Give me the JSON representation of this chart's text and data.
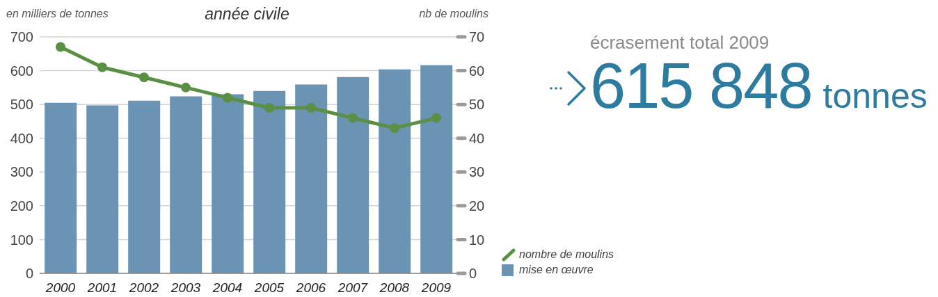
{
  "chart_data": [
    {
      "type": "bar",
      "title": "année civile",
      "ylabel": "en milliers de tonnes",
      "y2label": "nb de moulins",
      "categories": [
        "2000",
        "2001",
        "2002",
        "2003",
        "2004",
        "2005",
        "2006",
        "2007",
        "2008",
        "2009"
      ],
      "series": [
        {
          "name": "nombre de moulins",
          "type": "line",
          "axis": "y2",
          "color": "#5a8f45",
          "values": [
            67,
            61,
            58,
            55,
            52,
            49,
            49,
            46,
            43,
            46
          ]
        },
        {
          "name": "mise en œuvre",
          "color": "#6a93b4",
          "values": [
            505,
            497,
            511,
            524,
            530,
            540,
            559,
            581,
            604,
            616
          ]
        }
      ],
      "ylim": [
        0,
        700
      ],
      "yticks": [
        0,
        100,
        200,
        300,
        400,
        500,
        600,
        700
      ],
      "y2lim": [
        0,
        70
      ],
      "y2ticks": [
        0,
        10,
        20,
        30,
        40,
        50,
        60,
        70
      ],
      "grid": "y",
      "legend": "bottom right",
      "marker": "circle"
    },
    {
      "type": "other",
      "title": "écrasement total 2009",
      "annotations": [
        "615 848",
        "tonnes"
      ]
    }
  ]
}
